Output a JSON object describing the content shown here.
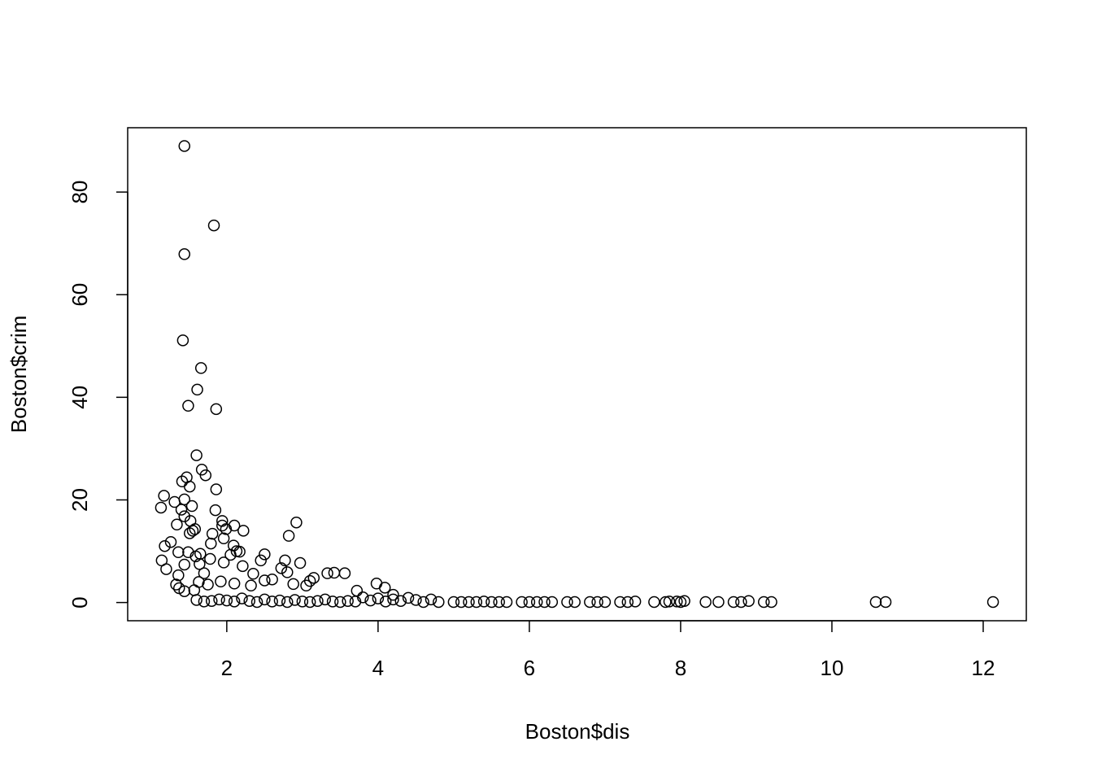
{
  "chart_data": {
    "type": "scatter",
    "x_label": "Boston$dis",
    "y_label": "Boston$crim",
    "x": [
      1.44,
      1.83,
      1.44,
      1.42,
      1.66,
      1.61,
      1.49,
      1.86,
      1.6,
      1.67,
      1.72,
      1.47,
      1.41,
      1.51,
      1.86,
      1.17,
      1.13,
      1.31,
      1.44,
      1.4,
      1.54,
      1.85,
      1.44,
      1.34,
      1.52,
      1.94,
      1.94,
      2.1,
      2.22,
      1.58,
      1.51,
      1.55,
      1.81,
      1.99,
      2.82,
      2.92,
      1.26,
      1.18,
      1.96,
      1.79,
      2.09,
      2.13,
      2.17,
      2.05,
      1.65,
      1.59,
      1.49,
      1.36,
      1.14,
      1.2,
      1.44,
      1.64,
      1.78,
      1.96,
      2.21,
      2.45,
      2.5,
      2.77,
      2.97,
      2.72,
      1.7,
      1.36,
      1.33,
      1.37,
      1.44,
      1.57,
      1.63,
      1.75,
      1.92,
      2.1,
      2.32,
      2.35,
      2.5,
      2.6,
      2.8,
      2.88,
      3.05,
      3.1,
      3.15,
      3.33,
      3.42,
      3.56,
      3.72,
      3.98,
      4.09,
      4.2,
      1.6,
      1.7,
      1.8,
      1.9,
      2.0,
      2.1,
      2.2,
      2.3,
      2.4,
      2.5,
      2.6,
      2.7,
      2.8,
      2.9,
      3.0,
      3.1,
      3.2,
      3.3,
      3.4,
      3.5,
      3.6,
      3.7,
      3.8,
      3.9,
      4.0,
      4.1,
      4.2,
      4.3,
      4.4,
      4.5,
      4.6,
      4.7,
      4.8,
      5.0,
      5.1,
      5.2,
      5.3,
      5.4,
      5.5,
      5.6,
      5.7,
      5.9,
      6.0,
      6.1,
      6.2,
      6.3,
      6.5,
      6.6,
      6.8,
      6.9,
      7.0,
      7.2,
      7.3,
      7.4,
      7.65,
      7.8,
      7.85,
      7.95,
      8.0,
      8.05,
      8.33,
      8.5,
      8.7,
      8.8,
      8.9,
      9.1,
      9.2,
      10.58,
      10.71,
      12.13
    ],
    "values": [
      88.98,
      73.5,
      67.9,
      51.1,
      45.7,
      41.5,
      38.35,
      37.7,
      28.7,
      25.9,
      24.8,
      24.4,
      23.6,
      22.6,
      22.05,
      20.8,
      18.5,
      19.6,
      20.1,
      18.1,
      18.8,
      18.0,
      16.8,
      15.2,
      15.9,
      15.9,
      15.0,
      15.0,
      14.0,
      14.3,
      13.5,
      14.0,
      13.4,
      14.3,
      13.0,
      15.6,
      11.8,
      11.0,
      12.5,
      11.5,
      11.1,
      10.0,
      9.9,
      9.3,
      9.5,
      9.0,
      9.8,
      9.8,
      8.2,
      6.5,
      7.4,
      7.5,
      8.5,
      7.8,
      7.1,
      8.2,
      9.4,
      8.2,
      7.7,
      6.7,
      5.7,
      5.3,
      3.5,
      2.8,
      2.2,
      2.4,
      4.0,
      3.5,
      4.1,
      3.7,
      3.3,
      5.6,
      4.3,
      4.5,
      5.9,
      3.6,
      3.3,
      4.2,
      4.8,
      5.7,
      5.8,
      5.7,
      2.3,
      3.7,
      2.9,
      1.5,
      0.5,
      0.2,
      0.3,
      0.6,
      0.4,
      0.2,
      0.8,
      0.3,
      0.1,
      0.6,
      0.2,
      0.4,
      0.1,
      0.5,
      0.2,
      0.1,
      0.3,
      0.6,
      0.2,
      0.1,
      0.3,
      0.2,
      1.0,
      0.4,
      0.8,
      0.2,
      0.6,
      0.3,
      0.9,
      0.5,
      0.1,
      0.6,
      0.1,
      0.1,
      0.1,
      0.1,
      0.1,
      0.2,
      0.1,
      0.1,
      0.1,
      0.1,
      0.1,
      0.1,
      0.1,
      0.1,
      0.1,
      0.1,
      0.1,
      0.1,
      0.1,
      0.1,
      0.1,
      0.2,
      0.1,
      0.1,
      0.2,
      0.2,
      0.1,
      0.3,
      0.1,
      0.1,
      0.1,
      0.1,
      0.3,
      0.1,
      0.1,
      0.1,
      0.1,
      0.1
    ],
    "xlim": [
      0.69,
      12.57
    ],
    "ylim": [
      -3.55,
      92.54
    ],
    "xticks": [
      2,
      4,
      6,
      8,
      10,
      12
    ],
    "yticks": [
      0,
      20,
      40,
      60,
      80
    ],
    "color": "#000000"
  }
}
